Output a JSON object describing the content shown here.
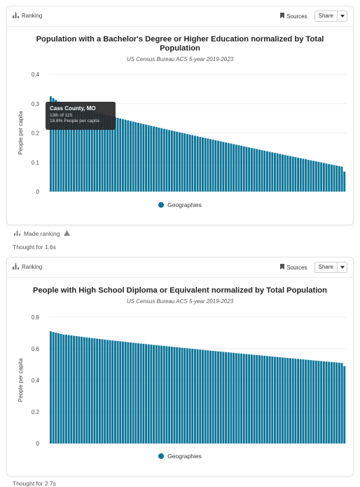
{
  "colors": {
    "accent": "#0a7497",
    "grid": "#e6e6e6"
  },
  "cards": [
    {
      "header": {
        "icon": "ranking-icon",
        "label": "Ranking",
        "sources_label": "Sources",
        "share_label": "Share"
      },
      "title_line1": "Population with a Bachelor's Degree or Higher Education normalized by Total",
      "title_line2": "Population",
      "subtitle": "US Census Bureau ACS 5-year 2019-2023",
      "legend": "Geographies",
      "tooltip": {
        "name": "Cass County, MO",
        "rank": "13th of 115",
        "value": "19.8% People per capita"
      }
    },
    {
      "header": {
        "icon": "ranking-icon",
        "label": "Ranking",
        "sources_label": "Sources",
        "share_label": "Share"
      },
      "title_line1": "People with High School Diploma or Equivalent normalized by Total Population",
      "subtitle": "US Census Bureau ACS 5-year 2019-2023",
      "legend": "Geographies"
    }
  ],
  "made_ranking": "Made ranking",
  "thought1": "Thought for 1.6s",
  "thought2": "Thought for 2.7s",
  "chart_data": [
    {
      "type": "bar",
      "ylabel": "People per capita",
      "yticks": [
        "0",
        "0.1",
        "0.2",
        "0.3",
        "0.4"
      ],
      "ylim": [
        0,
        0.4
      ],
      "series": [
        {
          "name": "Geographies",
          "start": 0.325,
          "end": 0.085,
          "last": 0.068,
          "count": 115
        }
      ]
    },
    {
      "type": "bar",
      "ylabel": "People per capita",
      "yticks": [
        "0",
        "0.2",
        "0.4",
        "0.6",
        "0.8"
      ],
      "ylim": [
        0,
        0.8
      ],
      "series": [
        {
          "name": "Geographies",
          "start": 0.71,
          "end": 0.51,
          "last": 0.49,
          "count": 115
        }
      ]
    }
  ]
}
